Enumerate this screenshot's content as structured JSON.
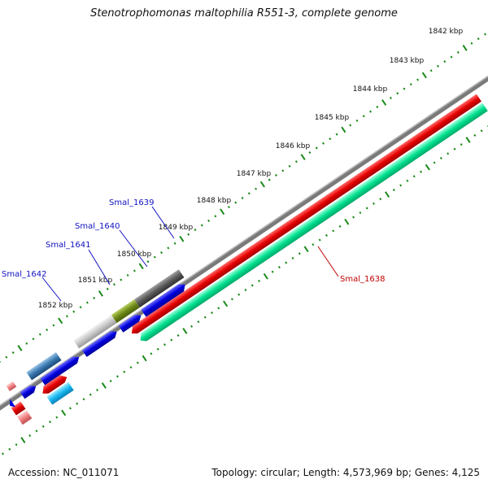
{
  "title": "Stenotrophomonas maltophilia R551-3, complete genome",
  "footer": {
    "accession": "Accession: NC_011071",
    "summary": "Topology: circular; Length: 4,573,969 bp; Genes: 4,125"
  },
  "colors": {
    "backbone": "#7a7a7a",
    "tick": "#1a8a1a",
    "forward_gene": "#e60000",
    "forward_cds": "#00e090",
    "reverse_cds": "#0000dd",
    "gene_label_blue": "#1010c0",
    "gene_label_red": "#c00000"
  },
  "scale_labels": [
    "1842 kbp",
    "1843 kbp",
    "1844 kbp",
    "1845 kbp",
    "1846 kbp",
    "1847 kbp",
    "1848 kbp",
    "1849 kbp",
    "1850 kbp",
    "1851 kbp",
    "1852 kbp"
  ],
  "gene_labels": [
    {
      "text": "Smal_1639",
      "color": "#1010c0"
    },
    {
      "text": "Smal_1640",
      "color": "#1010c0"
    },
    {
      "text": "Smal_1641",
      "color": "#1010c0"
    },
    {
      "text": "Smal_1642",
      "color": "#1010c0"
    },
    {
      "text": "Smal_1638",
      "color": "#c00000"
    }
  ]
}
